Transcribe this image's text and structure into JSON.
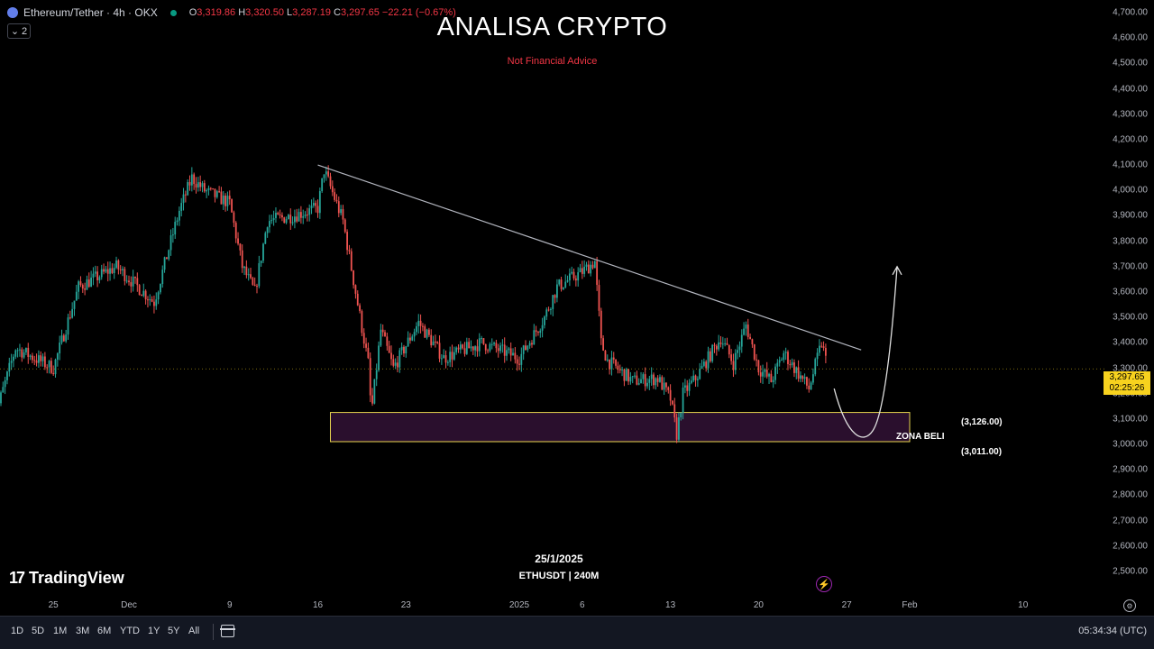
{
  "symbol": {
    "title": "Ethereum/Tether · 4h · OKX",
    "ohlc": {
      "o": "3,319.86",
      "h": "3,320.50",
      "l": "3,287.19",
      "c": "3,297.65",
      "change": "−22.21 (−0.67%)"
    },
    "collapse_count": "2",
    "icon": "ethereum-icon"
  },
  "header": {
    "title": "ANALISA CRYPTO",
    "subtitle": "Not Financial Advice"
  },
  "price_axis": {
    "ticks": [
      "4,700.00",
      "4,600.00",
      "4,500.00",
      "4,400.00",
      "4,300.00",
      "4,200.00",
      "4,100.00",
      "4,000.00",
      "3,900.00",
      "3,800.00",
      "3,700.00",
      "3,600.00",
      "3,500.00",
      "3,400.00",
      "3,300.00",
      "3,200.00",
      "3,100.00",
      "3,000.00",
      "2,900.00",
      "2,800.00",
      "2,700.00",
      "2,600.00",
      "2,500.00"
    ],
    "last_price": "3,297.65",
    "countdown": "02:25:26"
  },
  "time_axis": {
    "ticks": [
      "25",
      "Dec",
      "9",
      "16",
      "23",
      "2025",
      "6",
      "13",
      "20",
      "27",
      "Feb",
      "10"
    ]
  },
  "annotations": {
    "zone_label": "ZONA BELI",
    "zone_upper": "(3,126.00)",
    "zone_lower": "(3,011.00)",
    "date": "25/1/2025",
    "pair": "ETHUSDT | 240M"
  },
  "logo": {
    "mark": "17",
    "text": "TradingView"
  },
  "toolbar": {
    "timeframes": [
      "1D",
      "5D",
      "1M",
      "3M",
      "6M",
      "YTD",
      "1Y",
      "5Y",
      "All"
    ],
    "clock": "05:34:34 (UTC)"
  },
  "chart_data": {
    "type": "candlestick",
    "title": "",
    "xlabel": "",
    "ylabel": "",
    "ylim": [
      2450,
      4720
    ],
    "x_range": [
      "2024-11-20",
      "2025-02-14"
    ],
    "interval": "4h",
    "colors": {
      "up": "#26a69a",
      "down": "#ef5350",
      "trendline": "#b2b5be",
      "zone": "#2a0f2d",
      "zone_border": "#e6d44f"
    },
    "path_anchors": [
      {
        "t": "2024-11-20",
        "p": 3050
      },
      {
        "t": "2024-11-22",
        "p": 3380
      },
      {
        "t": "2024-11-25",
        "p": 3300
      },
      {
        "t": "2024-11-27",
        "p": 3620
      },
      {
        "t": "2024-11-30",
        "p": 3700
      },
      {
        "t": "2024-12-03",
        "p": 3560
      },
      {
        "t": "2024-12-05",
        "p": 3920
      },
      {
        "t": "2024-12-06",
        "p": 4050
      },
      {
        "t": "2024-12-07",
        "p": 4000
      },
      {
        "t": "2024-12-09",
        "p": 3950
      },
      {
        "t": "2024-12-10",
        "p": 3700
      },
      {
        "t": "2024-12-11",
        "p": 3600
      },
      {
        "t": "2024-12-12",
        "p": 3880
      },
      {
        "t": "2024-12-14",
        "p": 3900
      },
      {
        "t": "2024-12-16",
        "p": 3930
      },
      {
        "t": "2024-12-16T12",
        "p": 4080
      },
      {
        "t": "2024-12-18",
        "p": 3880
      },
      {
        "t": "2024-12-19",
        "p": 3600
      },
      {
        "t": "2024-12-20",
        "p": 3320
      },
      {
        "t": "2024-12-20T06",
        "p": 3120
      },
      {
        "t": "2024-12-21",
        "p": 3450
      },
      {
        "t": "2024-12-22",
        "p": 3300
      },
      {
        "t": "2024-12-24",
        "p": 3480
      },
      {
        "t": "2024-12-26",
        "p": 3340
      },
      {
        "t": "2024-12-29",
        "p": 3400
      },
      {
        "t": "2025-01-01",
        "p": 3340
      },
      {
        "t": "2025-01-03",
        "p": 3500
      },
      {
        "t": "2025-01-04",
        "p": 3620
      },
      {
        "t": "2025-01-06",
        "p": 3680
      },
      {
        "t": "2025-01-07",
        "p": 3720
      },
      {
        "t": "2025-01-07T12",
        "p": 3400
      },
      {
        "t": "2025-01-08",
        "p": 3330
      },
      {
        "t": "2025-01-10",
        "p": 3250
      },
      {
        "t": "2025-01-12",
        "p": 3260
      },
      {
        "t": "2025-01-13",
        "p": 3180
      },
      {
        "t": "2025-01-13T12",
        "p": 3040
      },
      {
        "t": "2025-01-14",
        "p": 3200
      },
      {
        "t": "2025-01-15",
        "p": 3260
      },
      {
        "t": "2025-01-17",
        "p": 3420
      },
      {
        "t": "2025-01-18",
        "p": 3320
      },
      {
        "t": "2025-01-19",
        "p": 3470
      },
      {
        "t": "2025-01-20",
        "p": 3300
      },
      {
        "t": "2025-01-21",
        "p": 3250
      },
      {
        "t": "2025-01-22",
        "p": 3360
      },
      {
        "t": "2025-01-24",
        "p": 3220
      },
      {
        "t": "2025-01-25",
        "p": 3400
      },
      {
        "t": "2025-01-25T12",
        "p": 3300
      }
    ],
    "trendline": [
      {
        "t": "2024-12-16",
        "p": 4100
      },
      {
        "t": "2025-01-26",
        "p": 3390
      }
    ],
    "buy_zone": {
      "label": "ZONA BELI",
      "from": "2024-12-17",
      "to": "2025-02-01",
      "low": 3011,
      "high": 3126
    },
    "projection": [
      {
        "t": "2025-01-26",
        "p": 3220
      },
      {
        "t": "2025-01-28",
        "p": 3090
      },
      {
        "t": "2025-01-30",
        "p": 3300
      },
      {
        "t": "2025-01-31",
        "p": 3700
      }
    ],
    "last_price": 3297.65
  }
}
